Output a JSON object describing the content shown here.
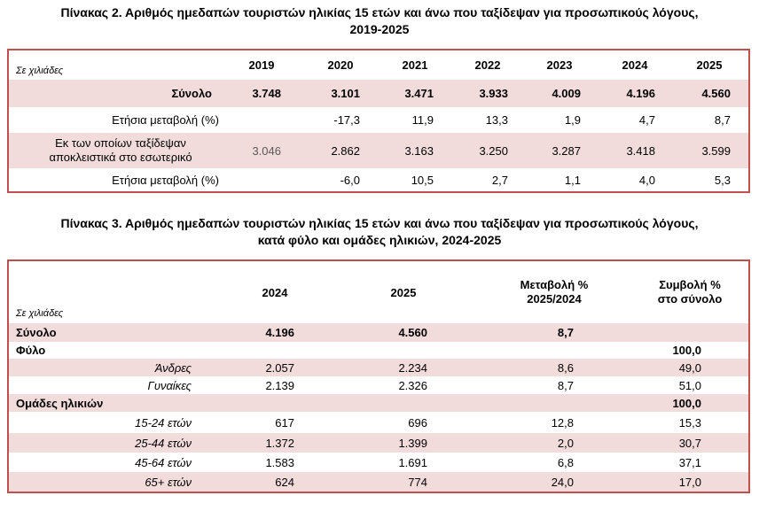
{
  "table2": {
    "title_line1": "Πίνακας 2. Αριθμός ημεδαπών τουριστών ηλικίας 15 ετών και άνω που ταξίδεψαν για προσωπικούς λόγους,",
    "title_line2": "2019-2025",
    "unit_label": "Σε χιλιάδες",
    "years": [
      "2019",
      "2020",
      "2021",
      "2022",
      "2023",
      "2024",
      "2025"
    ],
    "rows": [
      {
        "label": "Σύνολο",
        "values": [
          "3.748",
          "3.101",
          "3.471",
          "3.933",
          "4.009",
          "4.196",
          "4.560"
        ]
      },
      {
        "label": "Ετήσια μεταβολή (%)",
        "values": [
          "",
          "-17,3",
          "11,9",
          "13,3",
          "1,9",
          "4,7",
          "8,7"
        ]
      },
      {
        "label_line1": "Εκ των οποίων ταξίδεψαν",
        "label_line2": "αποκλειστικά στο εσωτερικό",
        "values": [
          "3.046",
          "2.862",
          "3.163",
          "3.250",
          "3.287",
          "3.418",
          "3.599"
        ]
      },
      {
        "label": "Ετήσια μεταβολή (%)",
        "values": [
          "",
          "-6,0",
          "10,5",
          "2,7",
          "1,1",
          "4,0",
          "5,3"
        ]
      }
    ]
  },
  "table3": {
    "title_line1": "Πίνακας 3. Αριθμός ημεδαπών τουριστών ηλικίας 15 ετών και άνω που ταξίδεψαν για προσωπικούς λόγους,",
    "title_line2": "κατά φύλο και ομάδες ηλικιών, 2024-2025",
    "unit_label": "Σε χιλιάδες",
    "headers": {
      "y2024": "2024",
      "y2025": "2025",
      "change_line1": "Μεταβολή %",
      "change_line2": "2025/2024",
      "share_line1": "Συμβολή %",
      "share_line2": "στο σύνολο"
    },
    "rows": [
      {
        "label": "Σύνολο",
        "v2024": "4.196",
        "v2025": "4.560",
        "change": "8,7",
        "share": ""
      },
      {
        "label": "Φύλο",
        "v2024": "",
        "v2025": "",
        "change": "",
        "share": "100,0"
      },
      {
        "label": "Άνδρες",
        "v2024": "2.057",
        "v2025": "2.234",
        "change": "8,6",
        "share": "49,0"
      },
      {
        "label": "Γυναίκες",
        "v2024": "2.139",
        "v2025": "2.326",
        "change": "8,7",
        "share": "51,0"
      },
      {
        "label": "Ομάδες ηλικιών",
        "v2024": "",
        "v2025": "",
        "change": "",
        "share": "100,0"
      },
      {
        "label": "15-24 ετών",
        "v2024": "617",
        "v2025": "696",
        "change": "12,8",
        "share": "15,3"
      },
      {
        "label": "25-44 ετών",
        "v2024": "1.372",
        "v2025": "1.399",
        "change": "2,0",
        "share": "30,7"
      },
      {
        "label": "45-64 ετών",
        "v2024": "1.583",
        "v2025": "1.691",
        "change": "6,8",
        "share": "37,1"
      },
      {
        "label": "65+ ετών",
        "v2024": "624",
        "v2025": "774",
        "change": "24,0",
        "share": "17,0"
      }
    ]
  }
}
